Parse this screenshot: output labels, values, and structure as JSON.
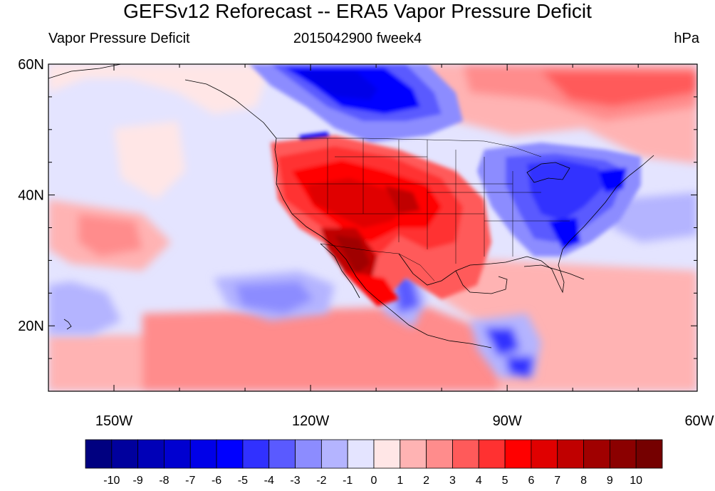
{
  "title": "GEFSv12 Reforecast -- ERA5 Vapor Pressure Deficit",
  "subtitle_left": "Vapor Pressure Deficit",
  "subtitle_center": "2015042900 fweek4",
  "subtitle_right": "hPa",
  "map": {
    "lon_range": [
      -160,
      -61
    ],
    "lat_range": [
      10,
      60
    ],
    "lat_ticks": [
      {
        "value": 60,
        "label": "60N"
      },
      {
        "value": 40,
        "label": "40N"
      },
      {
        "value": 20,
        "label": "20N"
      }
    ],
    "lon_ticks": [
      {
        "value": -150,
        "label": "150W"
      },
      {
        "value": -120,
        "label": "120W"
      },
      {
        "value": -90,
        "label": "90W"
      },
      {
        "value": -60,
        "label": "60W"
      }
    ],
    "coastline_color": "#000000"
  },
  "colorbar": {
    "levels": [
      "-10",
      "-9",
      "-8",
      "-7",
      "-6",
      "-5",
      "-4",
      "-3",
      "-2",
      "-1",
      "0",
      "1",
      "2",
      "3",
      "4",
      "5",
      "6",
      "7",
      "8",
      "9",
      "10"
    ],
    "colors": [
      "#000080",
      "#00009d",
      "#0000b7",
      "#0000d0",
      "#0000e8",
      "#0000ff",
      "#3131ff",
      "#5a5aff",
      "#8c8cff",
      "#b4b4ff",
      "#e4e4ff",
      "#ffe6e6",
      "#ffb3b3",
      "#ff8c8c",
      "#ff5a5a",
      "#ff3131",
      "#ff0000",
      "#e00000",
      "#c00000",
      "#a00000",
      "#8b0000",
      "#750000"
    ]
  }
}
